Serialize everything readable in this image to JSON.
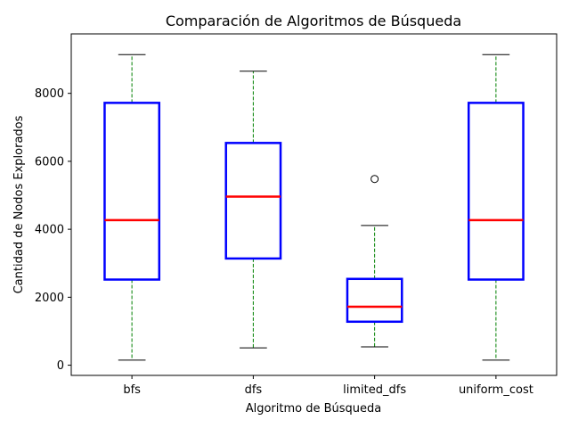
{
  "chart_data": {
    "type": "boxplot",
    "title": "Comparación de Algoritmos de Búsqueda",
    "xlabel": "Algoritmo de Búsqueda",
    "ylabel": "Cantidad de Nodos Explorados",
    "ylim": [
      -300,
      9750
    ],
    "yticks": [
      0,
      2000,
      4000,
      6000,
      8000
    ],
    "ytick_labels": [
      "0",
      "2000",
      "4000",
      "6000",
      "8000"
    ],
    "grid": false,
    "colors": {
      "box": "#0000ff",
      "median": "#ff0000",
      "whisker": "#008000",
      "cap": "#000000"
    },
    "categories": [
      "bfs",
      "dfs",
      "limited_dfs",
      "uniform_cost"
    ],
    "boxes": [
      {
        "label": "bfs",
        "whislo": 150,
        "q1": 2520,
        "med": 4270,
        "q3": 7720,
        "whishi": 9140,
        "fliers": []
      },
      {
        "label": "dfs",
        "whislo": 510,
        "q1": 3140,
        "med": 4960,
        "q3": 6540,
        "whishi": 8650,
        "fliers": []
      },
      {
        "label": "limited_dfs",
        "whislo": 540,
        "q1": 1280,
        "med": 1720,
        "q3": 2540,
        "whishi": 4110,
        "fliers": [
          5480
        ]
      },
      {
        "label": "uniform_cost",
        "whislo": 150,
        "q1": 2520,
        "med": 4270,
        "q3": 7720,
        "whishi": 9140,
        "fliers": []
      }
    ]
  }
}
